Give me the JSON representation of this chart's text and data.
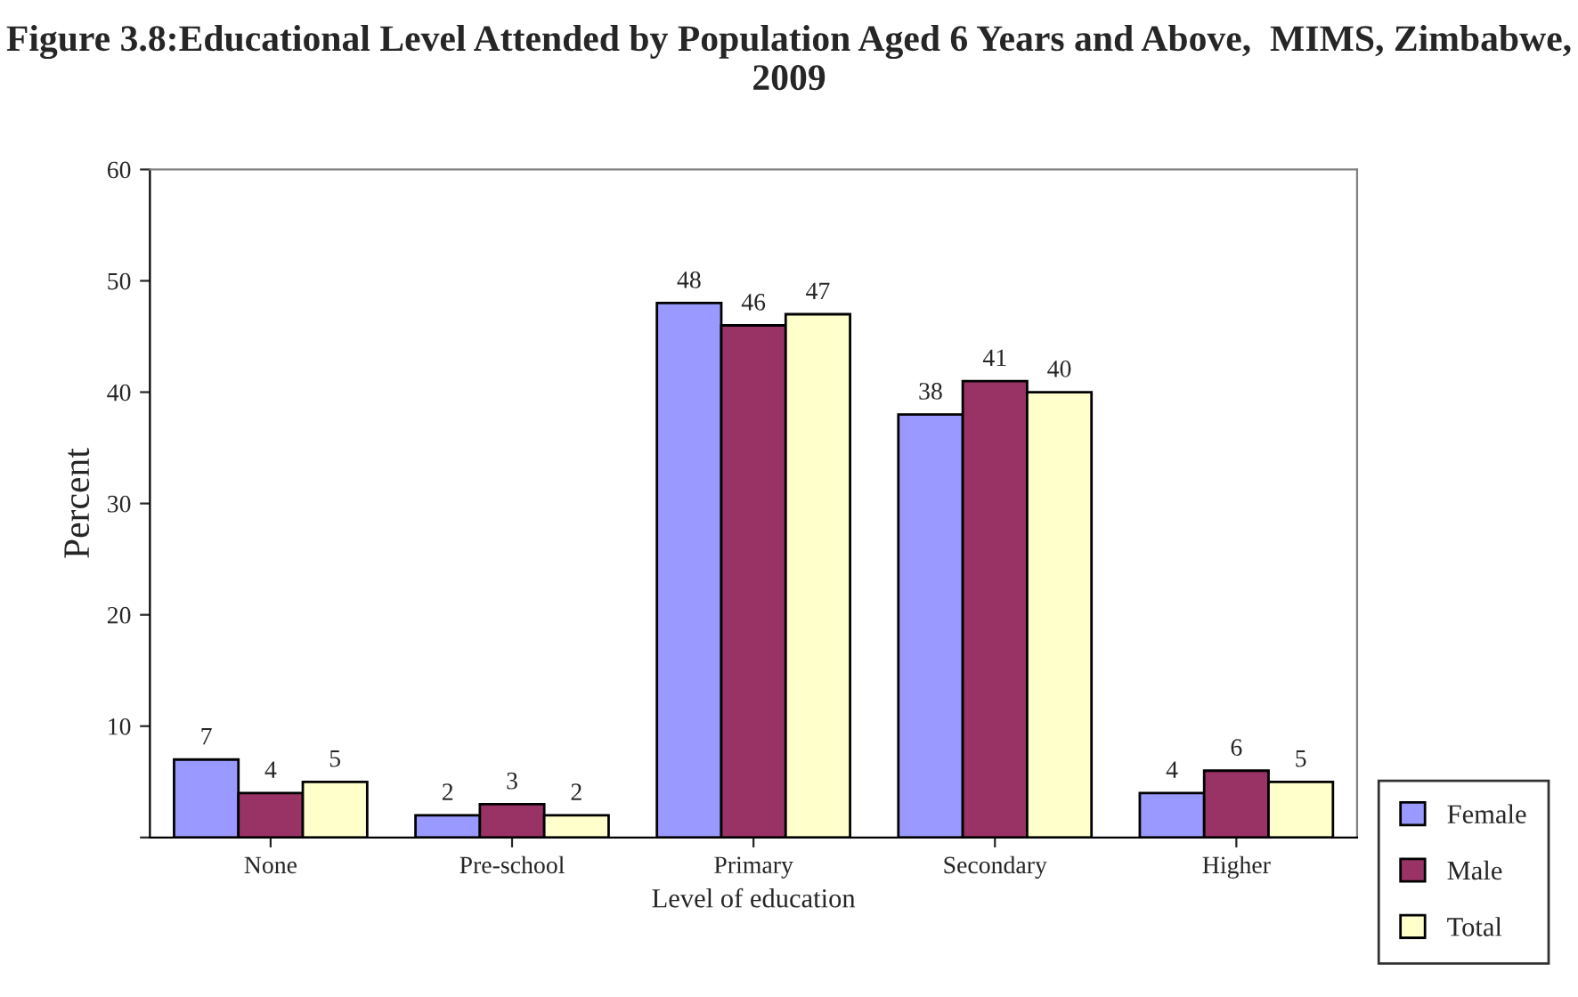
{
  "chart_data": {
    "type": "bar",
    "title": "Figure 3.8:Educational Level Attended by Population Aged 6 Years and Above,  MIMS, Zimbabwe, 2009",
    "xlabel": "Level of education",
    "ylabel": "Percent",
    "categories": [
      "None",
      "Pre-school",
      "Primary",
      "Secondary",
      "Higher"
    ],
    "series": [
      {
        "name": "Female",
        "color": "#9999ff",
        "values": [
          7,
          2,
          48,
          38,
          4
        ]
      },
      {
        "name": "Male",
        "color": "#993366",
        "values": [
          4,
          3,
          46,
          41,
          6
        ]
      },
      {
        "name": "Total",
        "color": "#ffffcc",
        "values": [
          5,
          2,
          47,
          40,
          5
        ]
      }
    ],
    "ylim": [
      0,
      60
    ],
    "yticks": [
      {
        "value": 0,
        "label": null
      },
      10,
      20,
      30,
      40,
      50,
      60
    ],
    "data_labels": true,
    "grid": false,
    "legend": "bottom right"
  }
}
